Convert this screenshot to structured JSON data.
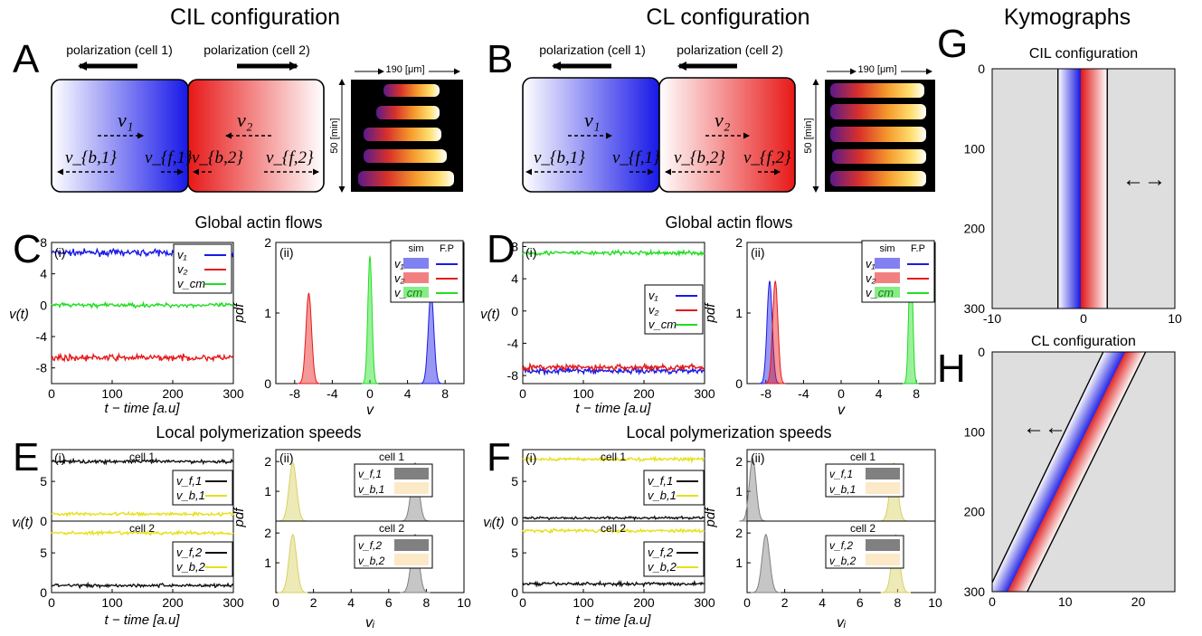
{
  "headers": {
    "cil": "CIL configuration",
    "cl": "CL configuration",
    "kymo": "Kymographs",
    "global_flows": "Global actin flows",
    "local_speeds": "Local polymerization speeds"
  },
  "panel_letters": {
    "A": "A",
    "B": "B",
    "C": "C",
    "D": "D",
    "E": "E",
    "F": "F",
    "G": "G",
    "H": "H"
  },
  "schematic": {
    "polarization_cell1": "polarization (cell 1)",
    "polarization_cell2": "polarization (cell 2)",
    "scale_width": "190 [μm]",
    "scale_time": "50 [min]",
    "v1": "v₁",
    "v2": "v₂",
    "vb1": "v_{b,1}",
    "vf1": "v_{f,1}",
    "vb2": "v_{b,2}",
    "vf2": "v_{f,2}"
  },
  "sublabels": {
    "i": "(i)",
    "ii": "(ii)"
  },
  "axis_labels": {
    "t": "t − time [a.u]",
    "vt": "v(t)",
    "pdf": "pdf",
    "v": "v",
    "vi_t": "vᵢ(t)",
    "vi": "vᵢ",
    "cell1": "cell 1",
    "cell2": "cell 2"
  },
  "legend": {
    "sim": "sim",
    "fp": "F.P",
    "v1": "v₁",
    "v2": "v₂",
    "vcm": "v_cm",
    "vf1": "v_f,1",
    "vb1": "v_b,1",
    "vf2": "v_f,2",
    "vb2": "v_b,2"
  },
  "kymo_titles": {
    "g": "CIL configuration",
    "h": "CL configuration"
  },
  "arrows": {
    "g": "←→",
    "h": "←←"
  },
  "colors": {
    "blue": "#1a1ae6",
    "red": "#e61a1a",
    "green": "#22dd22",
    "black": "#111111",
    "yellow": "#e6e01a",
    "grey": "#808080",
    "cream": "#fbe9c7",
    "kymo_bg": "#dedede"
  },
  "chart_data": [
    {
      "id": "C_i",
      "type": "line",
      "xlabel": "t − time [a.u]",
      "ylabel": "v(t)",
      "xlim": [
        0,
        300
      ],
      "ylim": [
        -10,
        8
      ],
      "xticks": [
        0,
        100,
        200,
        300
      ],
      "yticks": [
        8,
        4,
        0,
        -4,
        -8
      ],
      "series": [
        {
          "name": "v₁",
          "mean": 6.7,
          "noise": 0.35
        },
        {
          "name": "v₂",
          "mean": -6.7,
          "noise": 0.35
        },
        {
          "name": "v_cm",
          "mean": 0.0,
          "noise": 0.25
        }
      ]
    },
    {
      "id": "C_ii",
      "type": "area",
      "xlabel": "v",
      "ylabel": "pdf",
      "xlim": [
        -10,
        10
      ],
      "ylim": [
        0,
        2
      ],
      "xticks": [
        -8,
        -4,
        0,
        4,
        8
      ],
      "yticks": [
        0,
        1,
        2
      ],
      "series": [
        {
          "name": "v₁",
          "mean": 6.5,
          "sd": 0.3,
          "peak": 1.28
        },
        {
          "name": "v₂",
          "mean": -6.5,
          "sd": 0.3,
          "peak": 1.28
        },
        {
          "name": "v_cm",
          "mean": 0.0,
          "sd": 0.22,
          "peak": 1.8
        }
      ]
    },
    {
      "id": "D_i",
      "type": "line",
      "xlabel": "t − time [a.u]",
      "ylabel": "v(t)",
      "xlim": [
        0,
        300
      ],
      "ylim": [
        -9,
        8.5
      ],
      "xticks": [
        0,
        100,
        200,
        300
      ],
      "yticks": [
        8,
        4,
        0,
        -4,
        -8
      ],
      "series": [
        {
          "name": "v₁",
          "mean": -7.4,
          "noise": 0.35
        },
        {
          "name": "v₂",
          "mean": -7.0,
          "noise": 0.35
        },
        {
          "name": "v_cm",
          "mean": 7.2,
          "noise": 0.25
        }
      ]
    },
    {
      "id": "D_ii",
      "type": "area",
      "xlabel": "v",
      "ylabel": "pdf",
      "xlim": [
        -10,
        10
      ],
      "ylim": [
        0,
        2
      ],
      "xticks": [
        -8,
        -4,
        0,
        4,
        8
      ],
      "yticks": [
        0,
        1,
        2
      ],
      "series": [
        {
          "name": "v₁",
          "mean": -7.6,
          "sd": 0.28,
          "peak": 1.45
        },
        {
          "name": "v₂",
          "mean": -7.0,
          "sd": 0.28,
          "peak": 1.45
        },
        {
          "name": "v_cm",
          "mean": 7.4,
          "sd": 0.2,
          "peak": 2.0
        }
      ]
    },
    {
      "id": "E_i",
      "type": "line",
      "xlabel": "t − time [a.u]",
      "ylabel": "vᵢ(t)",
      "xlim": [
        0,
        300
      ],
      "ylim": [
        0,
        9
      ],
      "xticks": [
        0,
        100,
        200,
        300
      ],
      "yticks": [
        0,
        5
      ],
      "cell1": [
        {
          "name": "v_f,1",
          "mean": 7.5,
          "noise": 0.2
        },
        {
          "name": "v_b,1",
          "mean": 0.9,
          "noise": 0.2
        }
      ],
      "cell2": [
        {
          "name": "v_f,2",
          "mean": 0.9,
          "noise": 0.2
        },
        {
          "name": "v_b,2",
          "mean": 7.5,
          "noise": 0.2
        }
      ]
    },
    {
      "id": "E_ii",
      "type": "area",
      "xlabel": "vᵢ",
      "ylabel": "pdf",
      "xlim": [
        0,
        10
      ],
      "ylim": [
        0,
        2.4
      ],
      "xticks": [
        0,
        2,
        4,
        6,
        8,
        10
      ],
      "yticks": [
        0,
        1,
        2
      ],
      "cell1": [
        {
          "name": "v_f,1",
          "mean": 7.4,
          "sd": 0.2,
          "peak": 1.95
        },
        {
          "name": "v_b,1",
          "mean": 0.9,
          "sd": 0.2,
          "peak": 1.95
        }
      ],
      "cell2": [
        {
          "name": "v_f,2",
          "mean": 7.4,
          "sd": 0.2,
          "peak": 1.95
        },
        {
          "name": "v_b,2",
          "mean": 0.9,
          "sd": 0.2,
          "peak": 1.95
        }
      ]
    },
    {
      "id": "F_i",
      "type": "line",
      "xlabel": "t − time [a.u]",
      "ylabel": "vᵢ(t)",
      "xlim": [
        0,
        300
      ],
      "ylim": [
        0,
        9
      ],
      "xticks": [
        0,
        100,
        200,
        300
      ],
      "yticks": [
        0,
        5
      ],
      "cell1": [
        {
          "name": "v_f,1",
          "mean": 0.4,
          "noise": 0.15
        },
        {
          "name": "v_b,1",
          "mean": 7.8,
          "noise": 0.2
        }
      ],
      "cell2": [
        {
          "name": "v_f,2",
          "mean": 1.1,
          "noise": 0.2
        },
        {
          "name": "v_b,2",
          "mean": 7.8,
          "noise": 0.2
        }
      ]
    },
    {
      "id": "F_ii",
      "type": "area",
      "xlabel": "vᵢ",
      "ylabel": "pdf",
      "xlim": [
        0,
        10
      ],
      "ylim": [
        0,
        2.4
      ],
      "xticks": [
        0,
        2,
        4,
        6,
        8,
        10
      ],
      "yticks": [
        0,
        1,
        2
      ],
      "cell1": [
        {
          "name": "v_f,1",
          "mean": 0.3,
          "sd": 0.18,
          "peak": 2.1
        },
        {
          "name": "v_b,1",
          "mean": 7.8,
          "sd": 0.2,
          "peak": 1.95
        }
      ],
      "cell2": [
        {
          "name": "v_f,2",
          "mean": 1.0,
          "sd": 0.2,
          "peak": 1.95
        },
        {
          "name": "v_b,2",
          "mean": 7.9,
          "sd": 0.2,
          "peak": 1.95
        }
      ]
    },
    {
      "id": "G",
      "type": "heatmap",
      "title": "CIL configuration",
      "xlim": [
        -10,
        10
      ],
      "ylim": [
        0,
        300
      ],
      "xticks": [
        -10,
        0,
        10
      ],
      "yticks": [
        0,
        100,
        200,
        300
      ],
      "cell_edges": [
        -2.8,
        -0.3,
        2.6
      ]
    },
    {
      "id": "H",
      "type": "heatmap",
      "title": "CL configuration",
      "xlim": [
        0,
        25
      ],
      "ylim": [
        0,
        300
      ],
      "xticks": [
        0,
        10,
        20
      ],
      "yticks": [
        0,
        100,
        200,
        300
      ],
      "edges_t0": [
        15.2,
        18.2,
        21.0
      ],
      "edges_t300": [
        -0.6,
        2.1,
        4.8
      ]
    }
  ]
}
